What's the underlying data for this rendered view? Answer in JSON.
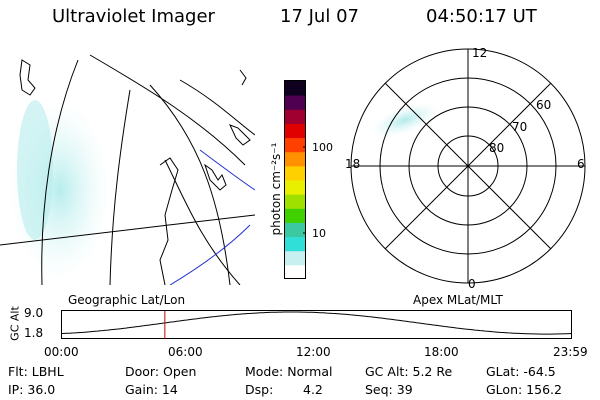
{
  "header": {
    "title": "Ultraviolet Imager",
    "date": "17 Jul 07",
    "time": "04:50:17 UT"
  },
  "colorbar": {
    "unit_label": "photon cm⁻²s⁻¹",
    "ticks": [
      "100",
      "10"
    ],
    "colors": [
      "#ffffff",
      "#c8f0f0",
      "#30e0d8",
      "#3cc8a0",
      "#40d000",
      "#a0e000",
      "#e8f000",
      "#ffd000",
      "#ff9000",
      "#ff4000",
      "#e00000",
      "#a00030",
      "#500050",
      "#100020"
    ]
  },
  "polar": {
    "mlt_labels": {
      "top": "12",
      "left": "18",
      "right": "6",
      "bottom": "0"
    },
    "lat_labels": [
      "60",
      "70",
      "80"
    ]
  },
  "altitude": {
    "ylabel": "GC Alt",
    "ymax": "9.0",
    "ymin": "1.8",
    "left_title": "Geographic Lat/Lon",
    "right_title": "Apex MLat/MLT",
    "x_ticks": [
      "00:00",
      "06:00",
      "12:00",
      "18:00",
      "23:59"
    ],
    "current_time_hours": 4.84
  },
  "info": {
    "flt": "Flt: LBHL",
    "ip": "IP: 36.0",
    "door": "Door: Open",
    "gain": "Gain: 14",
    "mode": "Mode: Normal",
    "dsp_label": "Dsp:",
    "dsp_value": "4.2",
    "gcalt": "GC Alt: 5.2 Re",
    "seq": "Seq: 39",
    "glat": "GLat: -64.5",
    "glon": "GLon: 156.2"
  }
}
